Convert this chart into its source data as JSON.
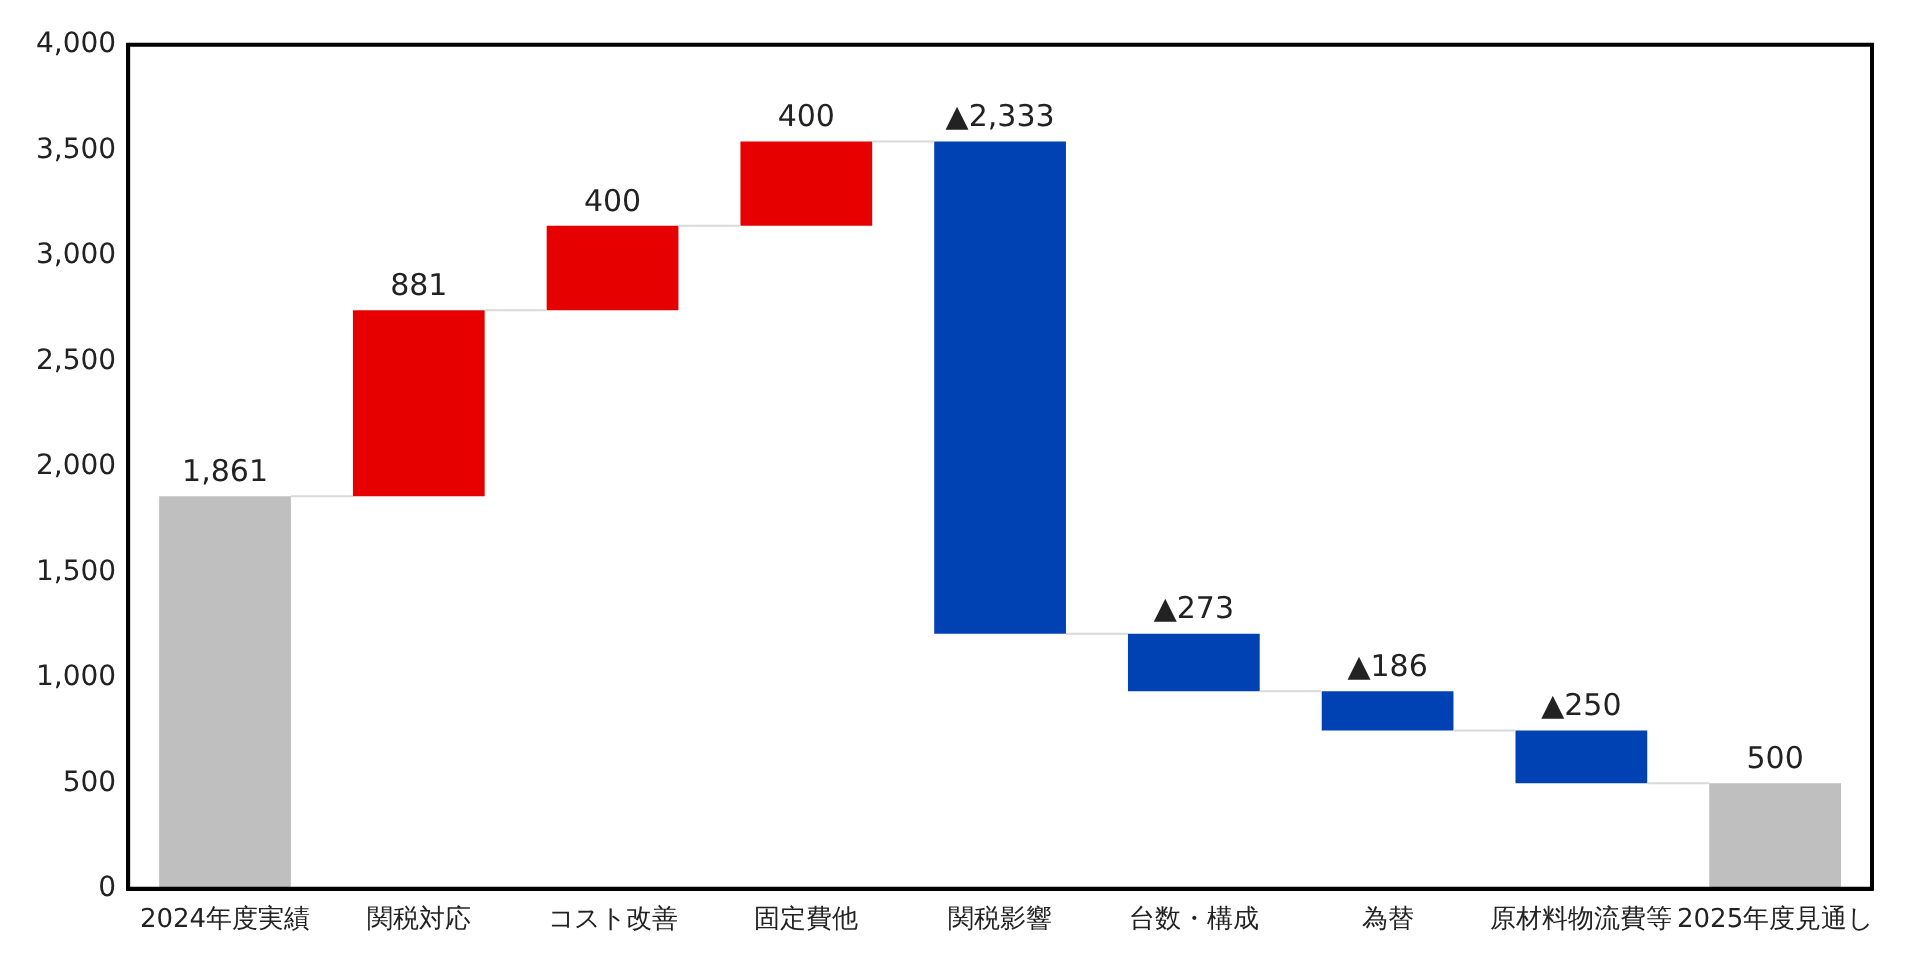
{
  "chart_data": {
    "type": "bar",
    "categories": [
      "2024年度実績",
      "関税対応",
      "コスト改善",
      "固定費他",
      "関税影響",
      "台数・構成",
      "為替",
      "原材料物流費等",
      "2025年度見通し"
    ],
    "values": [
      1861,
      881,
      400,
      400,
      -2333,
      -273,
      -186,
      -250,
      500
    ],
    "base": [
      0,
      1861,
      2742,
      3142,
      3542,
      1209,
      936,
      750,
      0
    ],
    "colors": [
      "#bfbfbf",
      "#e60000",
      "#e60000",
      "#e60000",
      "#0041b4",
      "#0041b4",
      "#0041b4",
      "#0041b4",
      "#bfbfbf"
    ],
    "value_labels": [
      "1,861",
      "881",
      "400",
      "400",
      "▲2,333",
      "▲273",
      "▲186",
      "▲250",
      "500"
    ],
    "ylim": [
      0,
      4000
    ],
    "yticks": [
      {
        "value": 0,
        "label": "0"
      },
      {
        "value": 500,
        "label": "500"
      },
      {
        "value": 1000,
        "label": "1,000"
      },
      {
        "value": 1500,
        "label": "1,500"
      },
      {
        "value": 2000,
        "label": "2,000"
      },
      {
        "value": 2500,
        "label": "2,500"
      },
      {
        "value": 3000,
        "label": "3,000"
      },
      {
        "value": 3500,
        "label": "3,500"
      },
      {
        "value": 4000,
        "label": "4,000"
      }
    ],
    "grid": false,
    "legend": false
  }
}
